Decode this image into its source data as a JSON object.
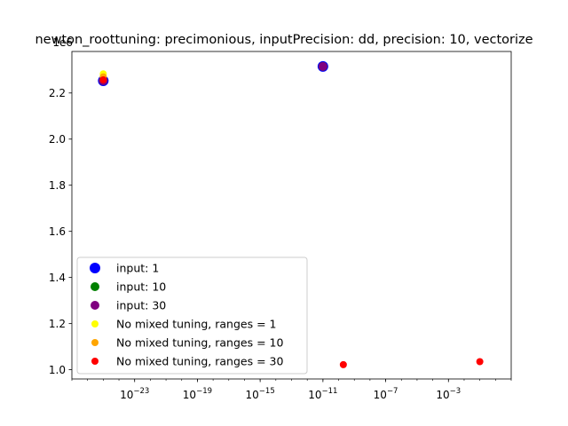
{
  "chart_data": {
    "type": "scatter",
    "title": "newton_roottuning: precimonious, inputPrecision: dd, precision: 10, vectorize",
    "xlabel": "",
    "ylabel": "",
    "x_scale": "log",
    "xlim": [
      1e-27,
      10.0
    ],
    "ylim": [
      0.96,
      2.38
    ],
    "y_offset_label": "1e6",
    "x_ticks": [
      {
        "value": 1e-23,
        "label": "10^-23",
        "base": "10",
        "exp": "−23"
      },
      {
        "value": 1e-19,
        "label": "10^-19",
        "base": "10",
        "exp": "−19"
      },
      {
        "value": 1e-15,
        "label": "10^-15",
        "base": "10",
        "exp": "−15"
      },
      {
        "value": 1e-11,
        "label": "10^-11",
        "base": "10",
        "exp": "−11"
      },
      {
        "value": 1e-07,
        "label": "10^-7",
        "base": "10",
        "exp": "−7"
      },
      {
        "value": 0.001,
        "label": "10^-3",
        "base": "10",
        "exp": "−3"
      }
    ],
    "y_ticks": [
      {
        "value": 1.0,
        "label": "1.0"
      },
      {
        "value": 1.2,
        "label": "1.2"
      },
      {
        "value": 1.4,
        "label": "1.4"
      },
      {
        "value": 1.6,
        "label": "1.6"
      },
      {
        "value": 1.8,
        "label": "1.8"
      },
      {
        "value": 2.0,
        "label": "2.0"
      },
      {
        "value": 2.2,
        "label": "2.2"
      }
    ],
    "legend_position": "lower-left",
    "grid": false,
    "series": [
      {
        "name": "input: 1",
        "color": "#0000ff",
        "size": "large",
        "points": [
          {
            "x": 1e-25,
            "y": 2.253
          },
          {
            "x": 1e-11,
            "y": 2.315
          }
        ]
      },
      {
        "name": "input: 10",
        "color": "#008000",
        "size": "medium",
        "points": [
          {
            "x": 1e-25,
            "y": 2.253
          },
          {
            "x": 1e-11,
            "y": 2.315
          }
        ]
      },
      {
        "name": "input: 30",
        "color": "#800080",
        "size": "medium",
        "points": [
          {
            "x": 1e-25,
            "y": 2.253
          },
          {
            "x": 1e-11,
            "y": 2.315
          }
        ]
      },
      {
        "name": "No mixed tuning, ranges = 1",
        "color": "#ffff00",
        "size": "small",
        "points": [
          {
            "x": 1e-25,
            "y": 2.283
          }
        ]
      },
      {
        "name": "No mixed tuning, ranges = 10",
        "color": "#ffa500",
        "size": "small",
        "points": [
          {
            "x": 1e-25,
            "y": 2.27
          }
        ]
      },
      {
        "name": "No mixed tuning, ranges = 30",
        "color": "#ff0000",
        "size": "small",
        "points": [
          {
            "x": 1e-25,
            "y": 2.257
          },
          {
            "x": 2e-10,
            "y": 1.022
          },
          {
            "x": 0.1,
            "y": 1.035
          }
        ]
      }
    ]
  }
}
